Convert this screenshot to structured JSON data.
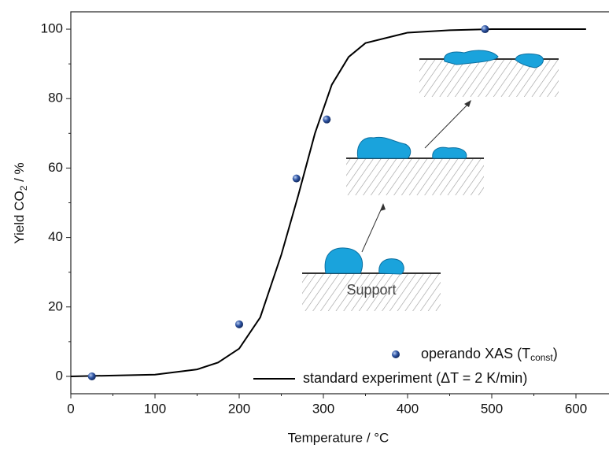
{
  "chart_data": {
    "type": "scatter",
    "x_label": "Temperature / °C",
    "y_label": {
      "text": "Yield CO",
      "sub": "2",
      "end": " / %"
    },
    "xlim": [
      0,
      640
    ],
    "xticks": [
      0,
      100,
      200,
      300,
      400,
      500,
      600
    ],
    "ylim": [
      -5,
      105
    ],
    "yticks": [
      0,
      20,
      40,
      60,
      80,
      100
    ],
    "legend": "lower right",
    "series": [
      {
        "type": "scatter",
        "name": {
          "text": "operando XAS (T",
          "sub": "const",
          "end": ")"
        },
        "color": "#2f55a4",
        "x": [
          25,
          200,
          268,
          304,
          492
        ],
        "values": [
          0,
          15,
          57,
          74,
          100
        ]
      },
      {
        "type": "line",
        "name": {
          "text": "standard experiment (ΔT = 2 K/min)"
        },
        "color": "#000000",
        "x": [
          0,
          100,
          150,
          175,
          200,
          225,
          250,
          270,
          290,
          310,
          330,
          350,
          400,
          450,
          500,
          612
        ],
        "values": [
          0,
          0.5,
          2,
          4,
          8,
          17,
          35,
          52,
          70,
          84,
          92,
          96,
          99,
          99.7,
          100,
          100
        ]
      }
    ],
    "annotation": "Support"
  }
}
